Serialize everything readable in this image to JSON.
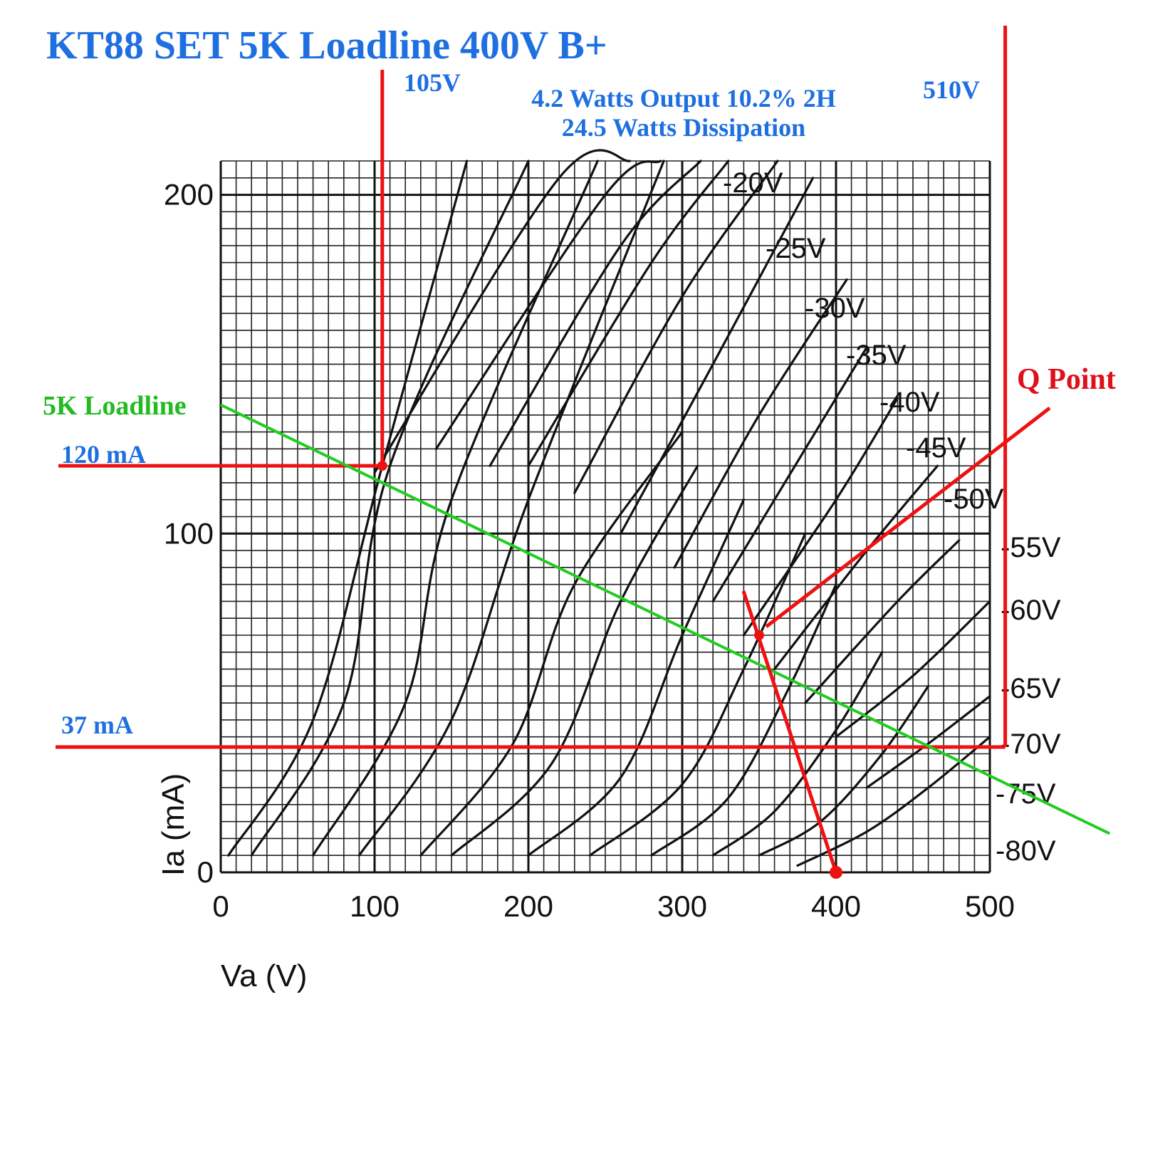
{
  "chart_data": {
    "type": "line",
    "title": "KT88 SET 5K Loadline 400V B+",
    "subtitle_lines": [
      "4.2 Watts Output 10.2% 2H",
      "24.5 Watts Dissipation"
    ],
    "xlabel": "Va (V)",
    "ylabel": "Ia (mA)",
    "xlim": [
      0,
      500
    ],
    "ylim": [
      0,
      210
    ],
    "x_ticks": [
      "0",
      "100",
      "200",
      "300",
      "400",
      "500"
    ],
    "y_ticks": [
      "0",
      "100",
      "200"
    ],
    "grid": true,
    "series": [
      {
        "name": "-20V",
        "points": [
          [
            100,
            118
          ],
          [
            220,
            205
          ],
          [
            266,
            210
          ]
        ]
      },
      {
        "name": "-25V",
        "points": [
          [
            140,
            125
          ],
          [
            250,
            200
          ],
          [
            286,
            210
          ]
        ]
      },
      {
        "name": "-30V",
        "points": [
          [
            175,
            120
          ],
          [
            260,
            185
          ],
          [
            312,
            210
          ]
        ]
      },
      {
        "name": "-35V",
        "points": [
          [
            200,
            120
          ],
          [
            280,
            180
          ],
          [
            330,
            210
          ]
        ]
      },
      {
        "name": "-40V",
        "points": [
          [
            230,
            112
          ],
          [
            300,
            170
          ],
          [
            362,
            210
          ]
        ]
      },
      {
        "name": "-45V",
        "points": [
          [
            260,
            100
          ],
          [
            320,
            150
          ],
          [
            385,
            205
          ]
        ]
      },
      {
        "name": "-50V",
        "points": [
          [
            295,
            90
          ],
          [
            350,
            135
          ],
          [
            407,
            175
          ]
        ]
      },
      {
        "name": "-55V",
        "points": [
          [
            320,
            80
          ],
          [
            380,
            125
          ],
          [
            420,
            155
          ]
        ]
      },
      {
        "name": "-60V",
        "points": [
          [
            340,
            70
          ],
          [
            400,
            110
          ],
          [
            440,
            140
          ]
        ]
      },
      {
        "name": "-65V",
        "points": [
          [
            360,
            60
          ],
          [
            420,
            95
          ],
          [
            466,
            120
          ]
        ]
      },
      {
        "name": "-70V",
        "points": [
          [
            380,
            50
          ],
          [
            440,
            80
          ],
          [
            480,
            98
          ]
        ]
      },
      {
        "name": "-75V",
        "points": [
          [
            400,
            40
          ],
          [
            450,
            58
          ],
          [
            500,
            80
          ]
        ]
      },
      {
        "name": "-80V",
        "points": [
          [
            420,
            25
          ],
          [
            460,
            38
          ],
          [
            500,
            52
          ]
        ]
      }
    ],
    "extra_curves": [
      [
        [
          5,
          5
        ],
        [
          60,
          45
        ],
        [
          105,
          120
        ],
        [
          160,
          210
        ]
      ],
      [
        [
          20,
          5
        ],
        [
          80,
          50
        ],
        [
          110,
          120
        ],
        [
          200,
          210
        ]
      ],
      [
        [
          60,
          5
        ],
        [
          120,
          50
        ],
        [
          150,
          110
        ],
        [
          245,
          210
        ]
      ],
      [
        [
          90,
          5
        ],
        [
          150,
          45
        ],
        [
          200,
          110
        ],
        [
          288,
          210
        ]
      ],
      [
        [
          130,
          5
        ],
        [
          190,
          38
        ],
        [
          230,
          85
        ],
        [
          300,
          130
        ]
      ],
      [
        [
          150,
          5
        ],
        [
          215,
          32
        ],
        [
          260,
          80
        ],
        [
          310,
          120
        ]
      ],
      [
        [
          200,
          5
        ],
        [
          260,
          28
        ],
        [
          300,
          70
        ],
        [
          340,
          110
        ]
      ],
      [
        [
          240,
          5
        ],
        [
          300,
          26
        ],
        [
          340,
          60
        ],
        [
          380,
          100
        ]
      ],
      [
        [
          280,
          5
        ],
        [
          330,
          22
        ],
        [
          370,
          55
        ],
        [
          400,
          85
        ]
      ],
      [
        [
          320,
          5
        ],
        [
          360,
          18
        ],
        [
          400,
          42
        ],
        [
          430,
          65
        ]
      ],
      [
        [
          350,
          5
        ],
        [
          390,
          15
        ],
        [
          430,
          35
        ],
        [
          460,
          55
        ]
      ],
      [
        [
          375,
          2
        ],
        [
          420,
          12
        ],
        [
          460,
          25
        ],
        [
          500,
          40
        ]
      ]
    ],
    "loadline": {
      "name": "5K Loadline",
      "points": [
        [
          0,
          138
        ],
        [
          520,
          23
        ]
      ]
    },
    "q_point": {
      "label": "Q Point",
      "x": 350,
      "y": 70
    },
    "markers": {
      "v_min": {
        "value": 105,
        "label": "105V"
      },
      "v_max": {
        "value": 510,
        "label": "510V"
      },
      "i_max": {
        "value": 120,
        "label": "120 mA"
      },
      "i_min": {
        "value": 37,
        "label": "37 mA"
      },
      "b_plus": {
        "value": 400
      }
    },
    "colors": {
      "annotation": "#1e6fe0",
      "marker": "#ee1111",
      "loadline": "#22cc22",
      "curve": "#111111"
    }
  }
}
